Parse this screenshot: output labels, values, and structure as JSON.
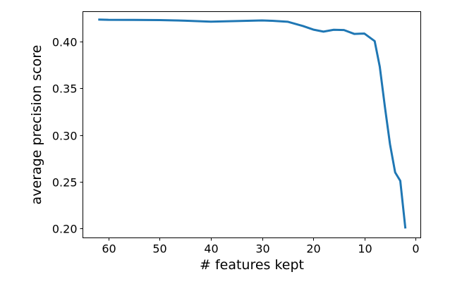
{
  "chart_data": {
    "type": "line",
    "title": "",
    "xlabel": "# features kept",
    "ylabel": "average precision score",
    "x_inverted": true,
    "xlim": [
      65,
      -1
    ],
    "ylim": [
      0.19,
      0.432
    ],
    "xticks": [
      60,
      50,
      40,
      30,
      20,
      10,
      0
    ],
    "xtick_labels": [
      "60",
      "50",
      "40",
      "30",
      "20",
      "10",
      "0"
    ],
    "yticks": [
      0.2,
      0.25,
      0.3,
      0.35,
      0.4
    ],
    "ytick_labels": [
      "0.20",
      "0.25",
      "0.30",
      "0.35",
      "0.40"
    ],
    "grid": false,
    "series": [
      {
        "color": "#1f77b4",
        "x": [
          62,
          60,
          55,
          50,
          45,
          40,
          35,
          30,
          28,
          25,
          22,
          20,
          18,
          16,
          14,
          12,
          10,
          8,
          7,
          6,
          5,
          4,
          3,
          2
        ],
        "y": [
          0.4235,
          0.4232,
          0.4231,
          0.423,
          0.4223,
          0.4213,
          0.4219,
          0.4226,
          0.4222,
          0.4212,
          0.4166,
          0.4128,
          0.4106,
          0.4126,
          0.4123,
          0.4082,
          0.4085,
          0.4005,
          0.373,
          0.33,
          0.29,
          0.26,
          0.251,
          0.2
        ]
      }
    ]
  }
}
